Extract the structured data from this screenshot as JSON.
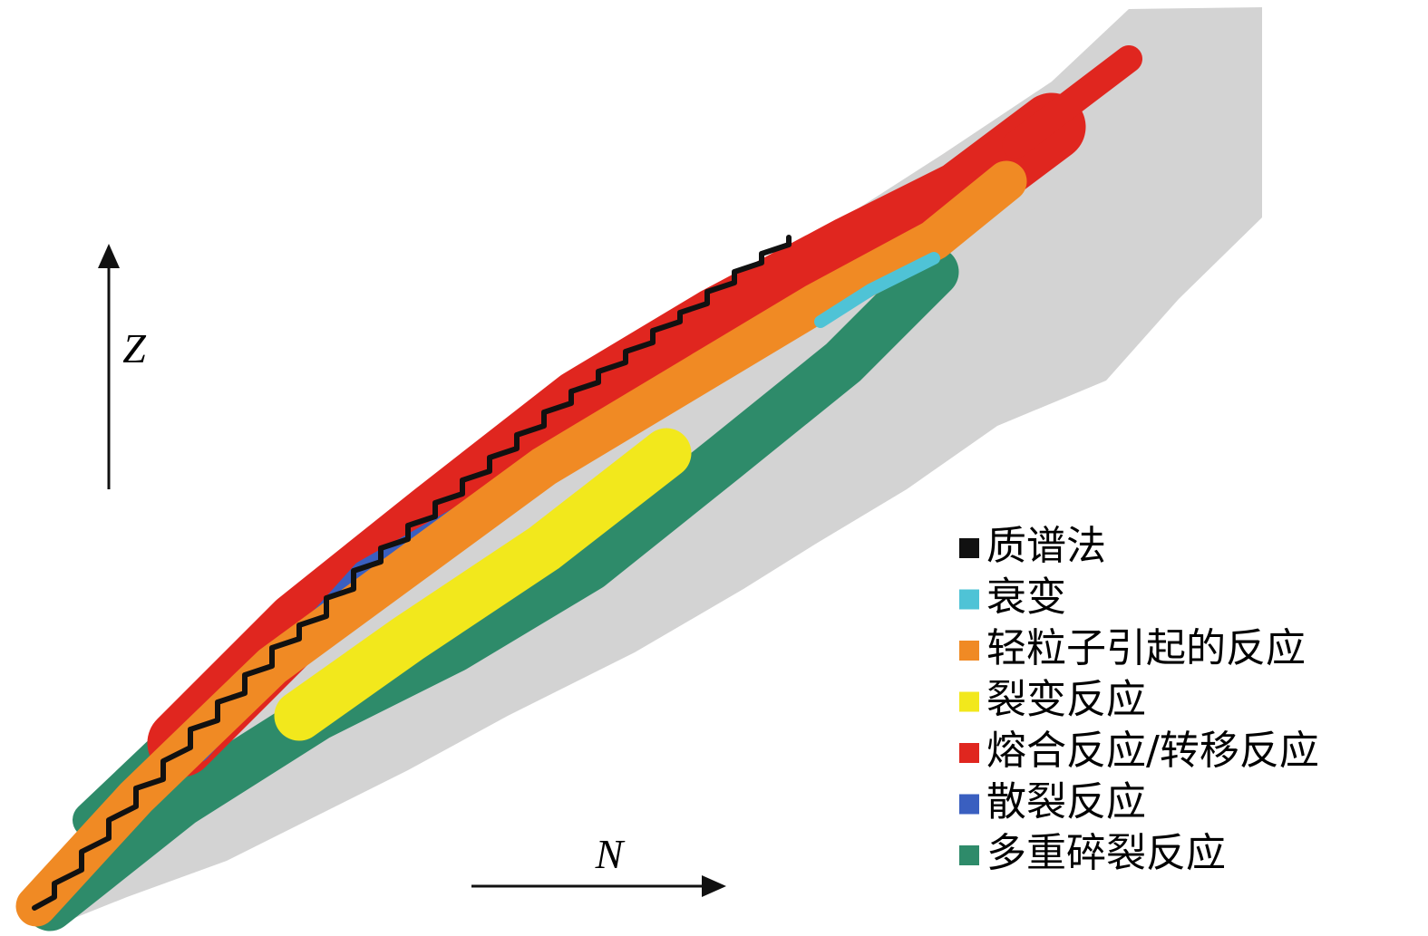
{
  "axes": {
    "x_label": "N",
    "y_label": "Z"
  },
  "legend": {
    "items": [
      {
        "label": "质谱法",
        "color": "#111111"
      },
      {
        "label": "衰变",
        "color": "#4fc3d6"
      },
      {
        "label": "轻粒子引起的反应",
        "color": "#f08a24"
      },
      {
        "label": "裂变反应",
        "color": "#f2e81c"
      },
      {
        "label": "熔合反应/转移反应",
        "color": "#e0261f"
      },
      {
        "label": "散裂反应",
        "color": "#3a5fc0"
      },
      {
        "label": "多重碎裂反应",
        "color": "#2e8b6a"
      }
    ]
  }
}
